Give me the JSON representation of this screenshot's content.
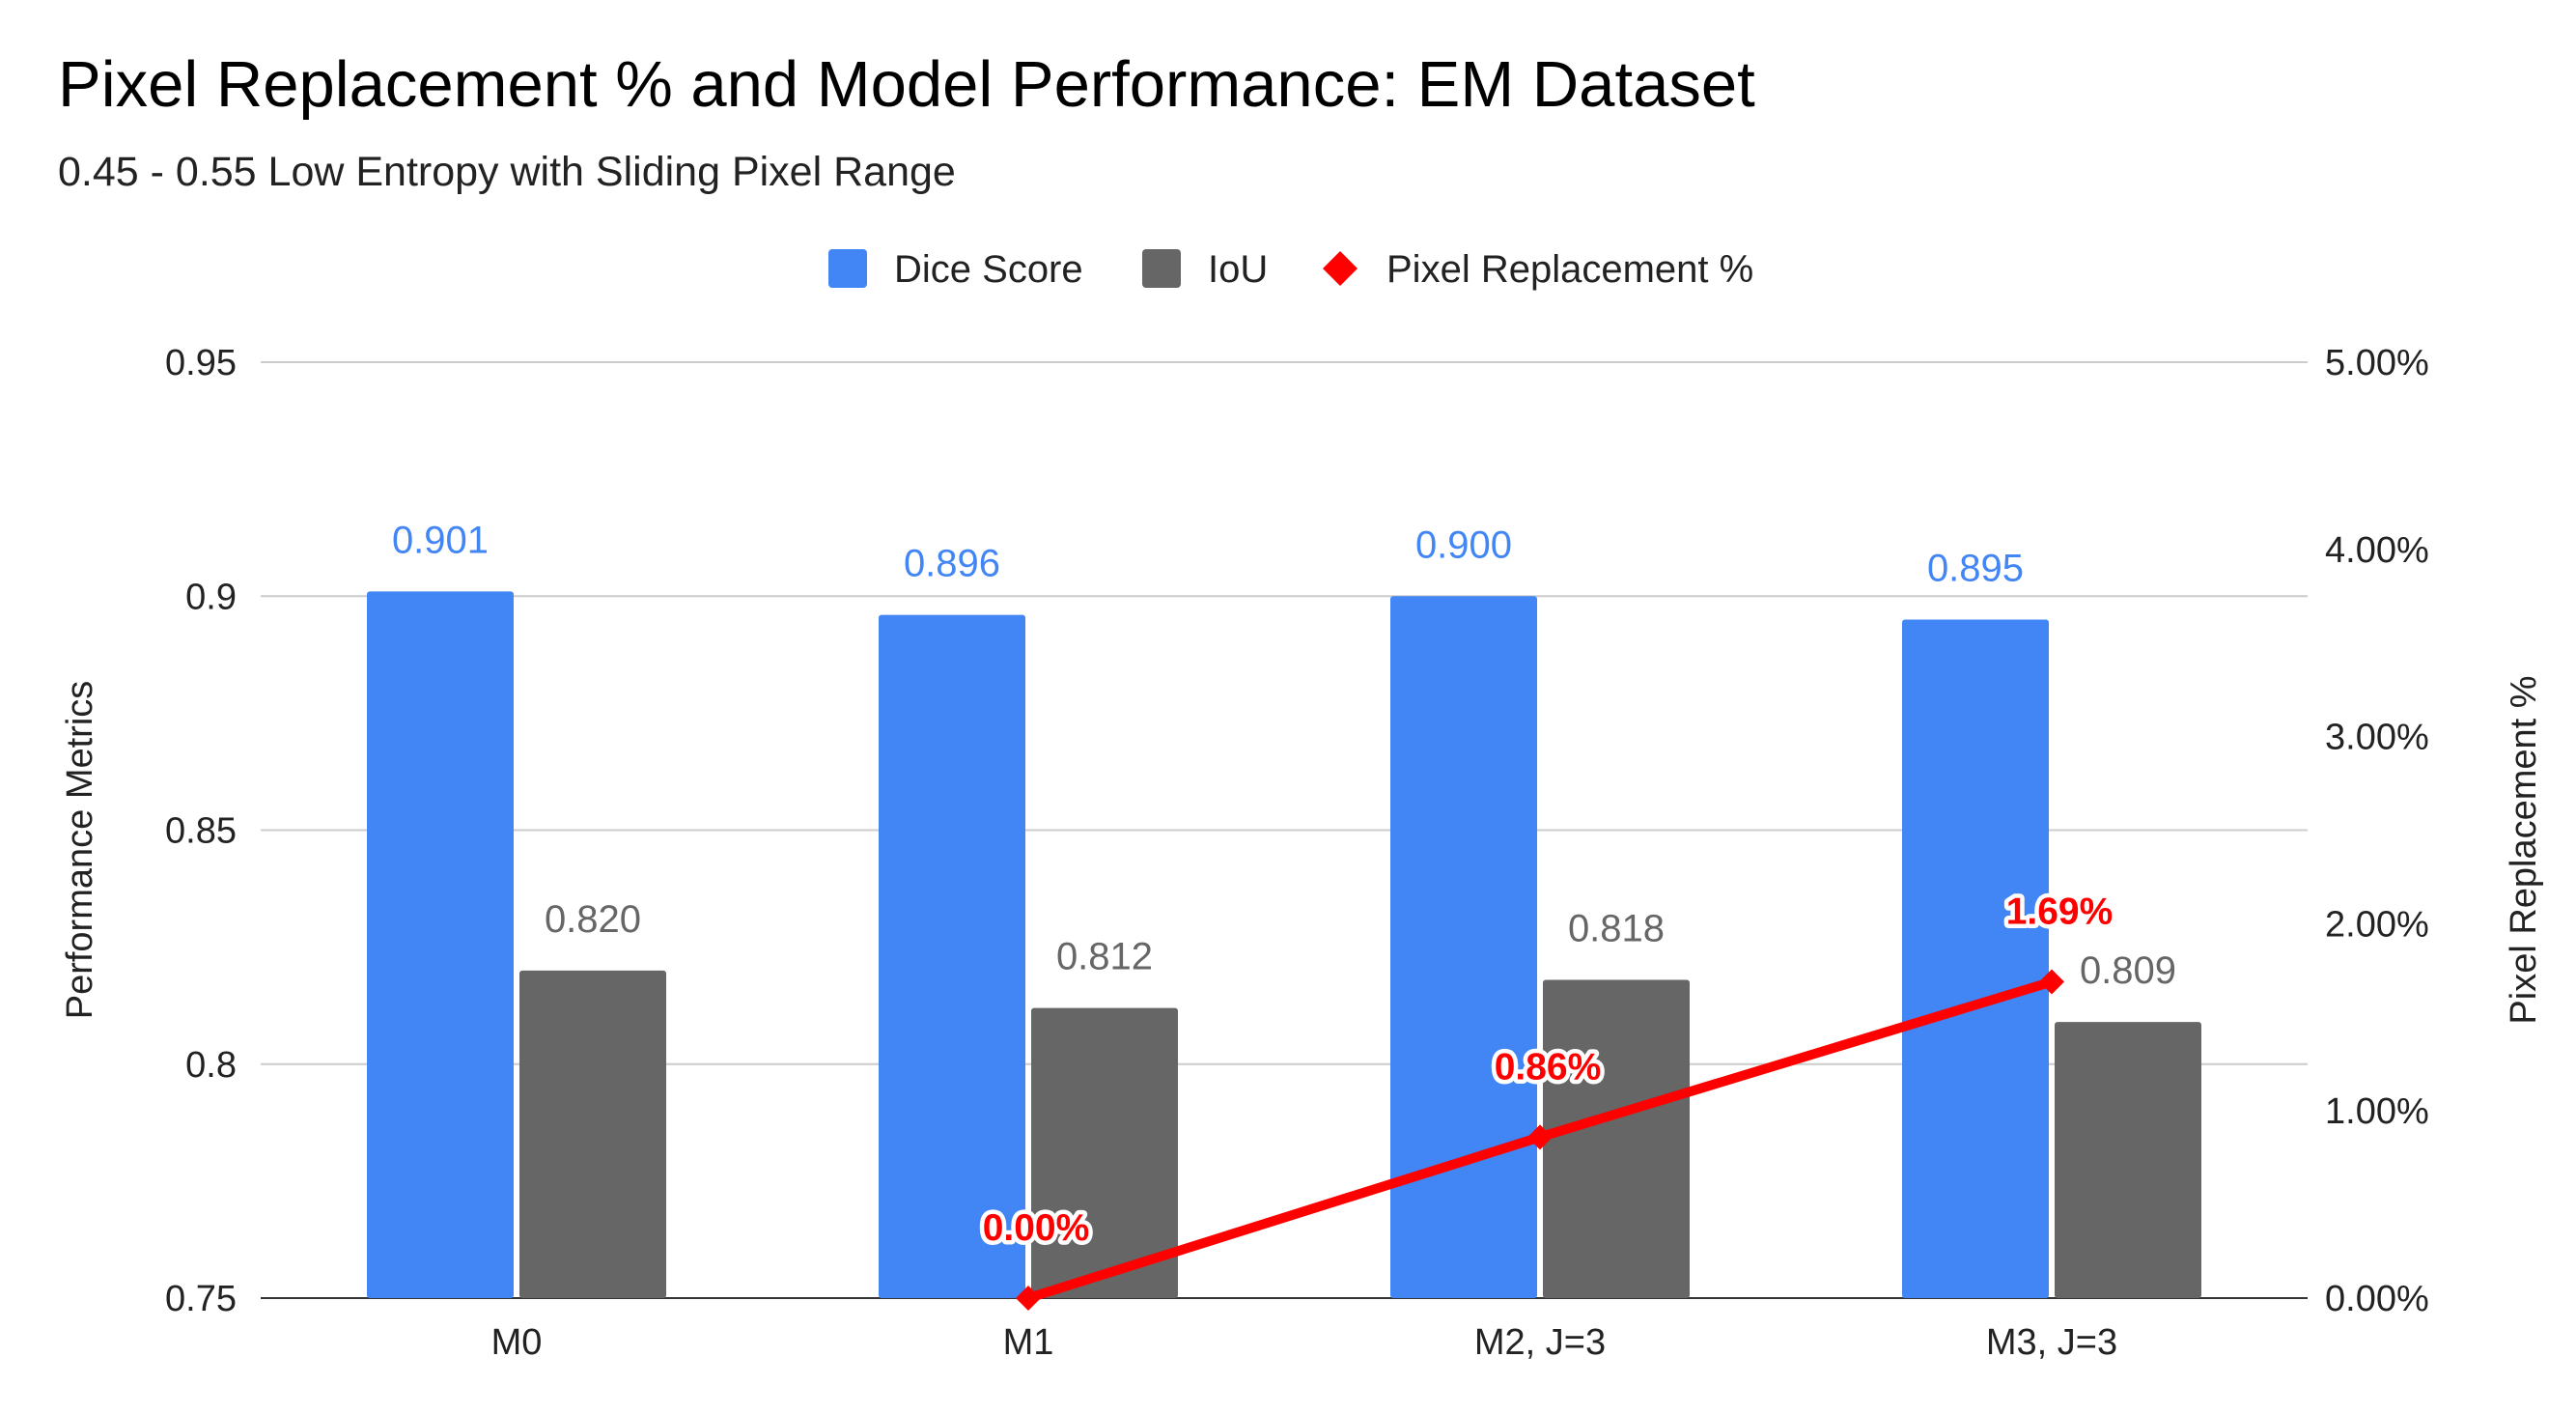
{
  "chart_data": {
    "type": "bar",
    "title": "Pixel Replacement % and Model Performance: EM Dataset",
    "subtitle": "0.45 - 0.55 Low Entropy with Sliding Pixel Range",
    "categories": [
      "M0",
      "M1",
      "M2, J=3",
      "M3, J=3"
    ],
    "series": [
      {
        "name": "Dice Score",
        "type": "bar",
        "axis": "left",
        "color": "#4285F4",
        "label_color": "#4285F4",
        "values": [
          0.901,
          0.896,
          0.9,
          0.895
        ],
        "labels": [
          "0.901",
          "0.896",
          "0.900",
          "0.895"
        ]
      },
      {
        "name": "IoU",
        "type": "bar",
        "axis": "left",
        "color": "#666666",
        "label_color": "#666666",
        "values": [
          0.82,
          0.812,
          0.818,
          0.809
        ],
        "labels": [
          "0.820",
          "0.812",
          "0.818",
          "0.809"
        ]
      },
      {
        "name": "Pixel Replacement %",
        "type": "line",
        "axis": "right",
        "color": "#FF0000",
        "label_color": "#FF0000",
        "values": [
          null,
          0.0,
          0.86,
          1.69
        ],
        "labels": [
          "",
          "0.00%",
          "0.86%",
          "1.69%"
        ]
      }
    ],
    "ylabel": "Performance Metrics",
    "y2label": "Pixel Replacement %",
    "ylim": [
      0.75,
      0.95
    ],
    "yticks": [
      0.75,
      0.8,
      0.85,
      0.9,
      0.95
    ],
    "ytick_labels": [
      "0.75",
      "0.8",
      "0.85",
      "0.9",
      "0.95"
    ],
    "y2lim": [
      0,
      5
    ],
    "y2ticks": [
      0,
      1,
      2,
      3,
      4,
      5
    ],
    "y2tick_labels": [
      "0.00%",
      "1.00%",
      "2.00%",
      "3.00%",
      "4.00%",
      "5.00%"
    ],
    "legend": {
      "position": "top-center",
      "entries": [
        "Dice Score",
        "IoU",
        "Pixel Replacement %"
      ]
    },
    "grid": true,
    "gridline_color": "#CCCCCC"
  }
}
